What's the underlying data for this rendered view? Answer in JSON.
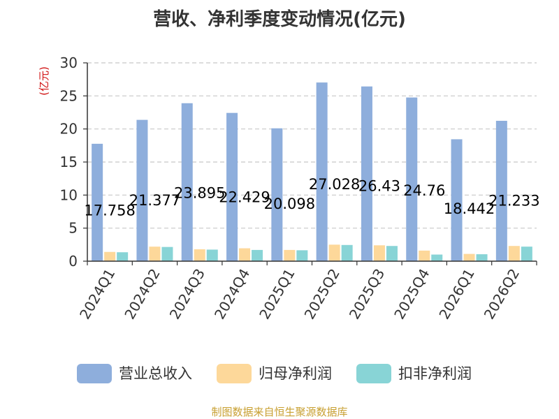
{
  "chart_data": {
    "type": "bar",
    "title": "营收、净利季度变动情况(亿元)",
    "ylabel": "(亿元)",
    "ylim": [
      0,
      30
    ],
    "yticks": [
      0,
      5,
      10,
      15,
      20,
      25,
      30
    ],
    "grid": true,
    "legend_position": "bottom",
    "categories": [
      "2024Q1",
      "2024Q2",
      "2024Q3",
      "2024Q4",
      "2025Q1",
      "2025Q2",
      "2025Q3",
      "2025Q4",
      "2026Q1",
      "2026Q2"
    ],
    "series": [
      {
        "name": "营业总收入",
        "color": "#8eaedc",
        "values": [
          17.758,
          21.377,
          23.895,
          22.429,
          20.098,
          27.028,
          26.43,
          24.76,
          18.442,
          21.233
        ],
        "labels": [
          "17.758",
          "21.377",
          "23.895",
          "22.429",
          "20.098",
          "27.028",
          "26.43",
          "24.76",
          "18.442",
          "21.233"
        ]
      },
      {
        "name": "归母净利润",
        "color": "#fdd89a",
        "values": [
          1.4,
          2.2,
          1.8,
          1.95,
          1.7,
          2.5,
          2.4,
          1.6,
          1.1,
          2.3
        ]
      },
      {
        "name": "扣非净利润",
        "color": "#88d4d6",
        "values": [
          1.35,
          2.15,
          1.75,
          1.7,
          1.65,
          2.45,
          2.3,
          1.0,
          1.05,
          2.2
        ]
      }
    ]
  },
  "source": "制图数据来自恒生聚源数据库"
}
